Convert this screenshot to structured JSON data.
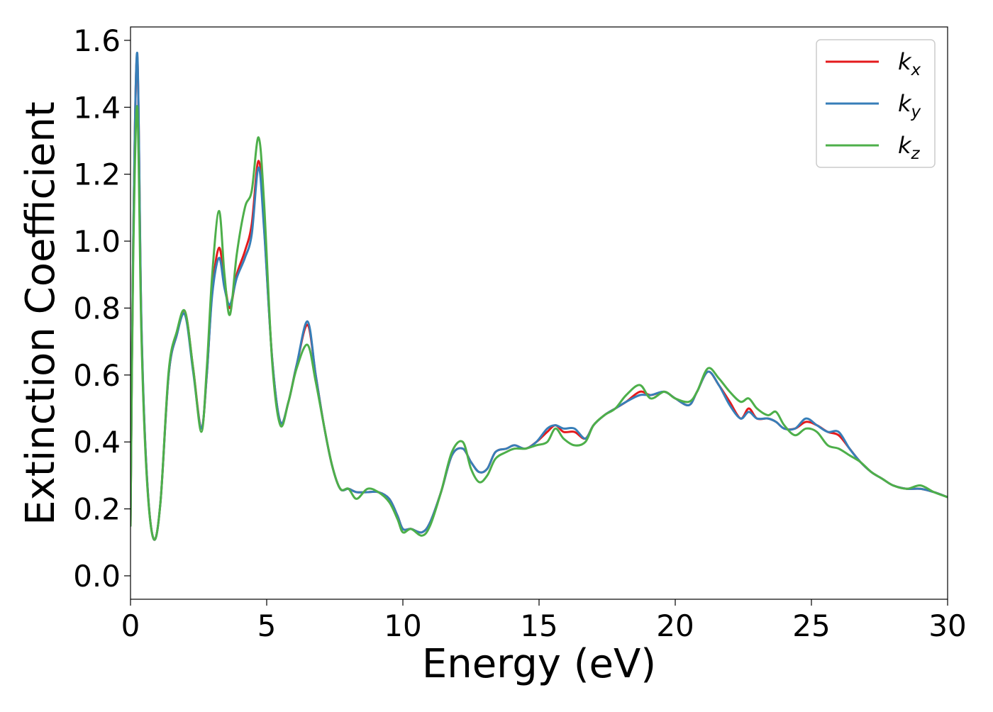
{
  "chart_data": {
    "type": "line",
    "title": "",
    "xlabel": "Energy (eV)",
    "ylabel": "Extinction Coefficient",
    "xlim": [
      0,
      30
    ],
    "ylim": [
      -0.07,
      1.64
    ],
    "xticks": [
      0,
      5,
      10,
      15,
      20,
      25,
      30
    ],
    "xtick_labels": [
      "0",
      "5",
      "10",
      "15",
      "20",
      "25",
      "30"
    ],
    "yticks": [
      0.0,
      0.2,
      0.4,
      0.6,
      0.8,
      1.0,
      1.2,
      1.4,
      1.6
    ],
    "ytick_labels": [
      "0.0",
      "0.2",
      "0.4",
      "0.6",
      "0.8",
      "1.0",
      "1.2",
      "1.4",
      "1.6"
    ],
    "grid": false,
    "legend_position": "top-right",
    "x": [
      0,
      0.1,
      0.25,
      0.4,
      0.6,
      0.85,
      1.1,
      1.4,
      1.7,
      2.0,
      2.3,
      2.6,
      2.8,
      3.0,
      3.25,
      3.45,
      3.65,
      3.9,
      4.2,
      4.45,
      4.7,
      4.9,
      5.2,
      5.5,
      5.8,
      6.1,
      6.5,
      6.8,
      7.1,
      7.4,
      7.7,
      8.0,
      8.3,
      8.7,
      9.1,
      9.5,
      9.8,
      10.0,
      10.3,
      10.7,
      11.0,
      11.4,
      11.8,
      12.2,
      12.5,
      12.8,
      13.1,
      13.4,
      13.8,
      14.1,
      14.5,
      14.9,
      15.3,
      15.6,
      15.9,
      16.3,
      16.7,
      17.0,
      17.4,
      17.8,
      18.2,
      18.7,
      19.1,
      19.6,
      20.0,
      20.5,
      20.8,
      21.2,
      21.6,
      22.0,
      22.4,
      22.7,
      23.0,
      23.4,
      23.7,
      24.0,
      24.4,
      24.8,
      25.2,
      25.6,
      26.0,
      26.4,
      26.8,
      27.2,
      27.6,
      28.0,
      28.5,
      29.0,
      29.5,
      30.0
    ],
    "series": [
      {
        "name": "k",
        "subscript": "x",
        "color": "#e41a1c",
        "values": [
          0.15,
          1.0,
          1.55,
          0.75,
          0.3,
          0.11,
          0.22,
          0.6,
          0.72,
          0.79,
          0.62,
          0.44,
          0.6,
          0.85,
          0.98,
          0.88,
          0.8,
          0.9,
          0.97,
          1.05,
          1.24,
          1.05,
          0.65,
          0.46,
          0.52,
          0.63,
          0.75,
          0.6,
          0.45,
          0.33,
          0.26,
          0.26,
          0.25,
          0.25,
          0.25,
          0.23,
          0.18,
          0.14,
          0.14,
          0.13,
          0.16,
          0.25,
          0.36,
          0.38,
          0.34,
          0.31,
          0.32,
          0.37,
          0.38,
          0.39,
          0.38,
          0.4,
          0.43,
          0.45,
          0.43,
          0.43,
          0.41,
          0.45,
          0.48,
          0.5,
          0.52,
          0.55,
          0.54,
          0.55,
          0.53,
          0.51,
          0.55,
          0.61,
          0.57,
          0.52,
          0.47,
          0.5,
          0.47,
          0.47,
          0.46,
          0.44,
          0.44,
          0.46,
          0.45,
          0.43,
          0.42,
          0.38,
          0.34,
          0.31,
          0.29,
          0.27,
          0.26,
          0.26,
          0.25,
          0.235
        ]
      },
      {
        "name": "k",
        "subscript": "y",
        "color": "#377eb8",
        "values": [
          0.15,
          1.0,
          1.56,
          0.76,
          0.3,
          0.11,
          0.22,
          0.6,
          0.72,
          0.78,
          0.61,
          0.44,
          0.6,
          0.84,
          0.95,
          0.86,
          0.81,
          0.89,
          0.95,
          1.02,
          1.22,
          1.04,
          0.65,
          0.46,
          0.52,
          0.63,
          0.76,
          0.6,
          0.45,
          0.33,
          0.26,
          0.26,
          0.25,
          0.25,
          0.25,
          0.23,
          0.18,
          0.14,
          0.14,
          0.13,
          0.16,
          0.25,
          0.36,
          0.38,
          0.34,
          0.31,
          0.32,
          0.37,
          0.38,
          0.39,
          0.38,
          0.4,
          0.44,
          0.45,
          0.44,
          0.44,
          0.41,
          0.45,
          0.48,
          0.5,
          0.52,
          0.54,
          0.54,
          0.55,
          0.53,
          0.51,
          0.55,
          0.61,
          0.57,
          0.51,
          0.47,
          0.49,
          0.47,
          0.47,
          0.46,
          0.44,
          0.44,
          0.47,
          0.45,
          0.43,
          0.43,
          0.38,
          0.34,
          0.31,
          0.29,
          0.27,
          0.26,
          0.26,
          0.25,
          0.235
        ]
      },
      {
        "name": "k",
        "subscript": "z",
        "color": "#4daf4a",
        "values": [
          0.15,
          0.95,
          1.4,
          0.72,
          0.29,
          0.11,
          0.22,
          0.61,
          0.73,
          0.79,
          0.62,
          0.43,
          0.62,
          0.9,
          1.09,
          0.9,
          0.78,
          0.96,
          1.1,
          1.15,
          1.31,
          1.12,
          0.64,
          0.45,
          0.52,
          0.62,
          0.69,
          0.58,
          0.45,
          0.33,
          0.26,
          0.26,
          0.23,
          0.26,
          0.25,
          0.22,
          0.17,
          0.13,
          0.14,
          0.12,
          0.15,
          0.25,
          0.37,
          0.4,
          0.32,
          0.28,
          0.3,
          0.35,
          0.37,
          0.38,
          0.38,
          0.39,
          0.4,
          0.44,
          0.41,
          0.39,
          0.4,
          0.45,
          0.48,
          0.5,
          0.54,
          0.57,
          0.53,
          0.55,
          0.53,
          0.52,
          0.55,
          0.62,
          0.59,
          0.55,
          0.52,
          0.53,
          0.5,
          0.48,
          0.49,
          0.45,
          0.42,
          0.44,
          0.43,
          0.39,
          0.38,
          0.36,
          0.34,
          0.31,
          0.29,
          0.27,
          0.26,
          0.27,
          0.25,
          0.235
        ]
      }
    ]
  }
}
